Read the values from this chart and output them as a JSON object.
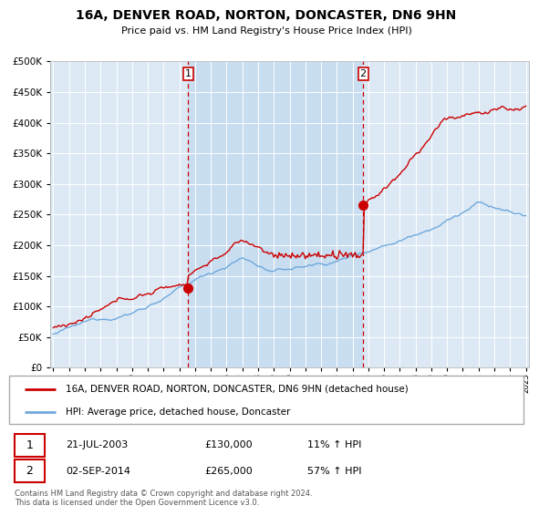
{
  "title": "16A, DENVER ROAD, NORTON, DONCASTER, DN6 9HN",
  "subtitle": "Price paid vs. HM Land Registry's House Price Index (HPI)",
  "legend_line1": "16A, DENVER ROAD, NORTON, DONCASTER, DN6 9HN (detached house)",
  "legend_line2": "HPI: Average price, detached house, Doncaster",
  "transaction1_date": "21-JUL-2003",
  "transaction1_price": "£130,000",
  "transaction1_hpi": "11% ↑ HPI",
  "transaction2_date": "02-SEP-2014",
  "transaction2_price": "£265,000",
  "transaction2_hpi": "57% ↑ HPI",
  "footer": "Contains HM Land Registry data © Crown copyright and database right 2024.\nThis data is licensed under the Open Government Licence v3.0.",
  "hpi_color": "#6fa8dc",
  "price_color": "#cc0000",
  "vline_color": "#cc0000",
  "plot_bg": "#dce9f5",
  "highlight_bg": "#c8ddf0",
  "grid_color": "#ffffff",
  "ylim": [
    0,
    500000
  ],
  "yticks": [
    0,
    50000,
    100000,
    150000,
    200000,
    250000,
    300000,
    350000,
    400000,
    450000,
    500000
  ],
  "transaction1_year": 2003.55,
  "transaction2_year": 2014.67,
  "transaction1_price_val": 130000,
  "transaction2_price_val": 265000
}
